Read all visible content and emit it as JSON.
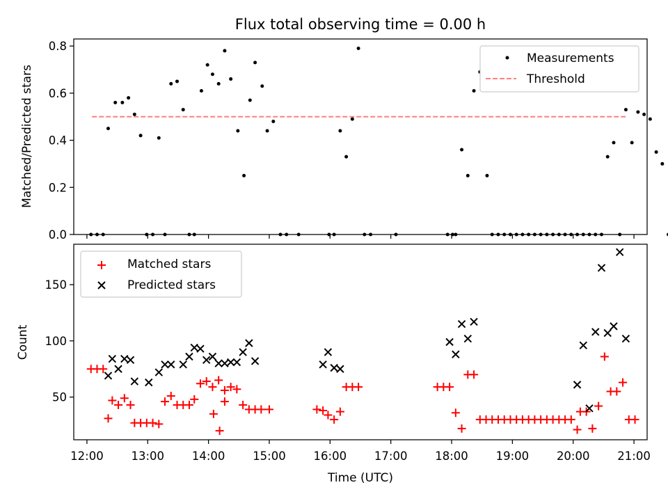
{
  "chart_data": [
    {
      "type": "scatter",
      "title": "Flux total observing time = 0.00 h",
      "xlabel": "",
      "ylabel": "Matched/Predicted stars",
      "xlim": [
        "11:47",
        "21:13"
      ],
      "ylim": [
        0,
        0.83
      ],
      "yticks": [
        "0.0",
        "0.2",
        "0.4",
        "0.6",
        "0.8"
      ],
      "yticks_values": [
        0,
        0.2,
        0.4,
        0.6,
        0.8
      ],
      "xticks_values": [
        "12:00",
        "13:00",
        "14:00",
        "15:00",
        "16:00",
        "17:00",
        "18:00",
        "19:00",
        "20:00",
        "21:00"
      ],
      "legend_placement": "upper right",
      "series": [
        {
          "name": "Measurements",
          "marker": "dot",
          "color": "#000000",
          "points": [
            [
              "12:04",
              0
            ],
            [
              "12:10",
              0
            ],
            [
              "12:16",
              0
            ],
            [
              "12:21",
              0.45
            ],
            [
              "12:28",
              0.56
            ],
            [
              "12:35",
              0.56
            ],
            [
              "12:41",
              0.58
            ],
            [
              "12:47",
              0.51
            ],
            [
              "12:53",
              0.42
            ],
            [
              "12:59",
              0
            ],
            [
              "13:05",
              0
            ],
            [
              "13:11",
              0.41
            ],
            [
              "13:17",
              0
            ],
            [
              "13:23",
              0.64
            ],
            [
              "13:29",
              0.65
            ],
            [
              "13:35",
              0.53
            ],
            [
              "13:41",
              0
            ],
            [
              "13:46",
              0
            ],
            [
              "13:53",
              0.61
            ],
            [
              "13:59",
              0.72
            ],
            [
              "14:04",
              0.68
            ],
            [
              "14:10",
              0.64
            ],
            [
              "14:16",
              0.78
            ],
            [
              "14:22",
              0.66
            ],
            [
              "14:29",
              0.44
            ],
            [
              "14:35",
              0.25
            ],
            [
              "14:41",
              0.57
            ],
            [
              "14:46",
              0.73
            ],
            [
              "14:53",
              0.63
            ],
            [
              "14:58",
              0.44
            ],
            [
              "15:04",
              0.48
            ],
            [
              "15:11",
              0
            ],
            [
              "15:17",
              0
            ],
            [
              "15:29",
              0
            ],
            [
              "15:59",
              0
            ],
            [
              "16:04",
              0
            ],
            [
              "16:10",
              0.44
            ],
            [
              "16:16",
              0.33
            ],
            [
              "16:22",
              0.49
            ],
            [
              "16:28",
              0.79
            ],
            [
              "16:34",
              0
            ],
            [
              "16:40",
              0
            ],
            [
              "17:05",
              0
            ],
            [
              "17:56",
              0
            ],
            [
              "18:01",
              0
            ],
            [
              "18:04",
              0
            ],
            [
              "18:10",
              0.36
            ],
            [
              "18:16",
              0.25
            ],
            [
              "18:22",
              0.61
            ],
            [
              "18:28",
              0.69
            ],
            [
              "18:35",
              0.25
            ],
            [
              "18:40",
              0
            ],
            [
              "18:46",
              0
            ],
            [
              "18:52",
              0
            ],
            [
              "18:58",
              0
            ],
            [
              "19:04",
              0
            ],
            [
              "19:10",
              0
            ],
            [
              "19:16",
              0
            ],
            [
              "19:22",
              0
            ],
            [
              "19:28",
              0
            ],
            [
              "19:34",
              0
            ],
            [
              "19:40",
              0
            ],
            [
              "19:46",
              0
            ],
            [
              "19:52",
              0
            ],
            [
              "19:58",
              0
            ],
            [
              "20:04",
              0
            ],
            [
              "20:10",
              0
            ],
            [
              "20:16",
              0
            ],
            [
              "20:22",
              0
            ],
            [
              "20:28",
              0
            ],
            [
              "20:34",
              0.33
            ],
            [
              "20:40",
              0.39
            ],
            [
              "20:46",
              0
            ],
            [
              "20:52",
              0.53
            ],
            [
              "20:58",
              0.39
            ],
            [
              "21:04",
              0.52
            ],
            [
              "21:10",
              0.51
            ],
            [
              "21:16",
              0.49
            ],
            [
              "21:22",
              0.35
            ],
            [
              "21:28",
              0.3
            ],
            [
              "21:34",
              0
            ]
          ]
        },
        {
          "name": "Threshold",
          "marker": "dashed-line",
          "color": "#ff7f7f",
          "y": 0.5,
          "x_range": [
            "12:05",
            "20:52"
          ]
        }
      ]
    },
    {
      "type": "scatter",
      "title": "",
      "xlabel": "Time (UTC)",
      "ylabel": "Count",
      "xlim": [
        "11:47",
        "21:13"
      ],
      "ylim": [
        12,
        186
      ],
      "yticks": [
        "50",
        "100",
        "150"
      ],
      "yticks_values": [
        50,
        100,
        150
      ],
      "xticks": [
        "12:00",
        "13:00",
        "14:00",
        "15:00",
        "16:00",
        "17:00",
        "18:00",
        "19:00",
        "20:00",
        "21:00"
      ],
      "xticks_values": [
        "12:00",
        "13:00",
        "14:00",
        "15:00",
        "16:00",
        "17:00",
        "18:00",
        "19:00",
        "20:00",
        "21:00"
      ],
      "legend_placement": "upper left",
      "series": [
        {
          "name": "Matched stars",
          "marker": "plus",
          "color": "#ff0000",
          "points": [
            [
              "12:04",
              75
            ],
            [
              "12:10",
              75
            ],
            [
              "12:16",
              75
            ],
            [
              "12:21",
              31
            ],
            [
              "12:25",
              47
            ],
            [
              "12:31",
              43
            ],
            [
              "12:37",
              49
            ],
            [
              "12:43",
              43
            ],
            [
              "12:47",
              27
            ],
            [
              "12:53",
              27
            ],
            [
              "12:59",
              27
            ],
            [
              "13:05",
              27
            ],
            [
              "13:11",
              26
            ],
            [
              "13:17",
              46
            ],
            [
              "13:23",
              51
            ],
            [
              "13:29",
              43
            ],
            [
              "13:35",
              43
            ],
            [
              "13:41",
              43
            ],
            [
              "13:46",
              48
            ],
            [
              "13:52",
              62
            ],
            [
              "13:58",
              64
            ],
            [
              "14:04",
              59
            ],
            [
              "14:10",
              65
            ],
            [
              "14:16",
              56
            ],
            [
              "14:05",
              35
            ],
            [
              "14:11",
              20
            ],
            [
              "14:16",
              46
            ],
            [
              "14:22",
              59
            ],
            [
              "14:28",
              57
            ],
            [
              "14:34",
              43
            ],
            [
              "14:40",
              39
            ],
            [
              "14:46",
              39
            ],
            [
              "14:52",
              39
            ],
            [
              "15:00",
              39
            ],
            [
              "15:47",
              39
            ],
            [
              "15:53",
              38
            ],
            [
              "15:58",
              34
            ],
            [
              "16:04",
              30
            ],
            [
              "16:10",
              37
            ],
            [
              "16:16",
              59
            ],
            [
              "16:22",
              59
            ],
            [
              "16:28",
              59
            ],
            [
              "17:46",
              59
            ],
            [
              "17:52",
              59
            ],
            [
              "17:58",
              59
            ],
            [
              "18:04",
              36
            ],
            [
              "18:10",
              22
            ],
            [
              "18:16",
              70
            ],
            [
              "18:22",
              70
            ],
            [
              "18:28",
              30
            ],
            [
              "18:34",
              30
            ],
            [
              "18:40",
              30
            ],
            [
              "18:46",
              30
            ],
            [
              "18:52",
              30
            ],
            [
              "18:58",
              30
            ],
            [
              "19:04",
              30
            ],
            [
              "19:10",
              30
            ],
            [
              "19:16",
              30
            ],
            [
              "19:22",
              30
            ],
            [
              "19:28",
              30
            ],
            [
              "19:34",
              30
            ],
            [
              "19:40",
              30
            ],
            [
              "19:46",
              30
            ],
            [
              "19:52",
              30
            ],
            [
              "19:58",
              30
            ],
            [
              "20:04",
              21
            ],
            [
              "20:07",
              37
            ],
            [
              "20:13",
              37
            ],
            [
              "20:19",
              22
            ],
            [
              "20:25",
              42
            ],
            [
              "20:31",
              86
            ],
            [
              "20:37",
              55
            ],
            [
              "20:43",
              55
            ],
            [
              "20:49",
              63
            ],
            [
              "20:55",
              30
            ],
            [
              "21:01",
              30
            ]
          ]
        },
        {
          "name": "Predicted stars",
          "marker": "x",
          "color": "#000000",
          "points": [
            [
              "12:21",
              69
            ],
            [
              "12:25",
              84
            ],
            [
              "12:31",
              75
            ],
            [
              "12:37",
              84
            ],
            [
              "12:43",
              83
            ],
            [
              "12:47",
              64
            ],
            [
              "13:01",
              63
            ],
            [
              "13:11",
              72
            ],
            [
              "13:17",
              79
            ],
            [
              "13:23",
              79
            ],
            [
              "13:35",
              79
            ],
            [
              "13:41",
              86
            ],
            [
              "13:46",
              94
            ],
            [
              "13:52",
              93
            ],
            [
              "13:58",
              83
            ],
            [
              "14:04",
              86
            ],
            [
              "14:10",
              80
            ],
            [
              "14:16",
              80
            ],
            [
              "14:22",
              81
            ],
            [
              "14:28",
              81
            ],
            [
              "14:34",
              90
            ],
            [
              "14:40",
              98
            ],
            [
              "14:46",
              82
            ],
            [
              "15:53",
              79
            ],
            [
              "15:58",
              90
            ],
            [
              "16:04",
              76
            ],
            [
              "16:10",
              75
            ],
            [
              "17:58",
              99
            ],
            [
              "18:04",
              88
            ],
            [
              "18:10",
              115
            ],
            [
              "18:16",
              102
            ],
            [
              "18:22",
              117
            ],
            [
              "20:04",
              61
            ],
            [
              "20:10",
              96
            ],
            [
              "20:16",
              40
            ],
            [
              "20:22",
              108
            ],
            [
              "20:28",
              165
            ],
            [
              "20:34",
              107
            ],
            [
              "20:40",
              113
            ],
            [
              "20:46",
              179
            ],
            [
              "20:52",
              102
            ]
          ]
        }
      ]
    }
  ]
}
